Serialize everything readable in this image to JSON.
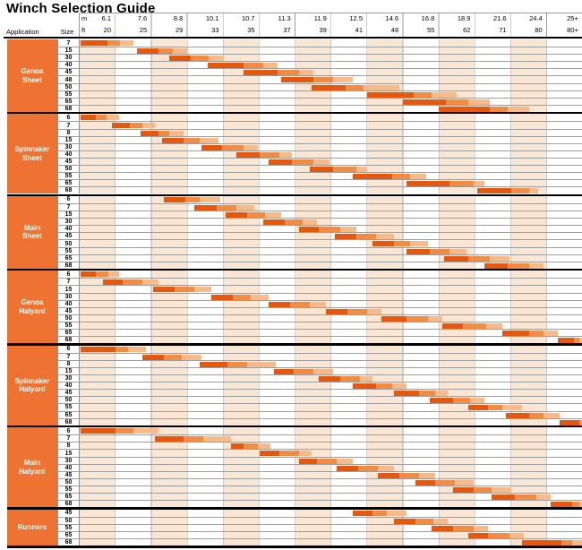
{
  "title": "Winch Selection Guide",
  "header": {
    "application_label": "Application",
    "size_label": "Size",
    "unit_top": "m",
    "unit_bottom": "ft"
  },
  "colors": {
    "bar_dark": "#e4590e",
    "bar_mid": "#f08c44",
    "bar_light": "#f6ba8b",
    "column_shade": "#fae6d4",
    "application_cell": "#ee7231",
    "gridline": "#9e9e9e",
    "section_divider": "#000000"
  },
  "chart_data": {
    "type": "bar",
    "subtype": "horizontal-range-guide",
    "title": "Winch Selection Guide",
    "legend_position": "none",
    "grid": true,
    "x_axis": {
      "unit_labels": [
        "m",
        "ft"
      ],
      "ticks": [
        {
          "m": "6.1",
          "ft": "20"
        },
        {
          "m": "7.6",
          "ft": "25"
        },
        {
          "m": "8.8",
          "ft": "29"
        },
        {
          "m": "10.1",
          "ft": "33"
        },
        {
          "m": "10.7",
          "ft": "35"
        },
        {
          "m": "11.3",
          "ft": "37"
        },
        {
          "m": "11.9",
          "ft": "39"
        },
        {
          "m": "12.5",
          "ft": "41"
        },
        {
          "m": "14.6",
          "ft": "48"
        },
        {
          "m": "16.8",
          "ft": "55"
        },
        {
          "m": "18.9",
          "ft": "62"
        },
        {
          "m": "21.6",
          "ft": "71"
        },
        {
          "m": "24.4",
          "ft": "80"
        },
        {
          "m": "25+",
          "ft": "80+"
        }
      ],
      "note": "bar values are in column units: 0 = left edge of the 6.1m/20ft column, each tick column = 1 unit; segments are dark/mid/light orange"
    },
    "sections": [
      {
        "application": "Genoa Sheet",
        "rows": [
          {
            "winch_size": "7",
            "start": 0.02,
            "dark_end": 0.78,
            "mid_end": 1.12,
            "end": 1.5
          },
          {
            "winch_size": "15",
            "start": 1.6,
            "dark_end": 2.2,
            "mid_end": 2.6,
            "end": 3.0
          },
          {
            "winch_size": "30",
            "start": 2.5,
            "dark_end": 3.1,
            "mid_end": 3.6,
            "end": 4.0
          },
          {
            "winch_size": "40",
            "start": 3.55,
            "dark_end": 4.55,
            "mid_end": 5.1,
            "end": 5.5
          },
          {
            "winch_size": "45",
            "start": 4.55,
            "dark_end": 5.5,
            "mid_end": 6.1,
            "end": 6.5
          },
          {
            "winch_size": "48",
            "start": 5.6,
            "dark_end": 6.5,
            "mid_end": 7.05,
            "end": 7.6
          },
          {
            "winch_size": "50",
            "start": 6.45,
            "dark_end": 7.4,
            "mid_end": 7.9,
            "end": 8.9
          },
          {
            "winch_size": "55",
            "start": 8.0,
            "dark_end": 9.3,
            "mid_end": 9.8,
            "end": 10.5
          },
          {
            "winch_size": "65",
            "start": 9.0,
            "dark_end": 10.2,
            "mid_end": 10.8,
            "end": 11.4
          },
          {
            "winch_size": "68",
            "start": 10.0,
            "dark_end": 11.4,
            "mid_end": 11.9,
            "end": 12.5
          }
        ]
      },
      {
        "application": "Spinnaker Sheet",
        "rows": [
          {
            "winch_size": "6",
            "start": 0.02,
            "dark_end": 0.45,
            "mid_end": 0.75,
            "end": 1.1
          },
          {
            "winch_size": "7",
            "start": 0.9,
            "dark_end": 1.4,
            "mid_end": 1.75,
            "end": 2.1
          },
          {
            "winch_size": "8",
            "start": 1.7,
            "dark_end": 2.2,
            "mid_end": 2.5,
            "end": 2.9
          },
          {
            "winch_size": "15",
            "start": 2.3,
            "dark_end": 2.9,
            "mid_end": 3.35,
            "end": 3.85
          },
          {
            "winch_size": "30",
            "start": 3.4,
            "dark_end": 3.95,
            "mid_end": 4.55,
            "end": 4.95
          },
          {
            "winch_size": "40",
            "start": 4.35,
            "dark_end": 5.0,
            "mid_end": 5.55,
            "end": 5.9
          },
          {
            "winch_size": "45",
            "start": 5.25,
            "dark_end": 5.9,
            "mid_end": 6.5,
            "end": 6.95
          },
          {
            "winch_size": "50",
            "start": 6.4,
            "dark_end": 7.05,
            "mid_end": 7.7,
            "end": 8.0
          },
          {
            "winch_size": "55",
            "start": 7.6,
            "dark_end": 8.7,
            "mid_end": 9.2,
            "end": 9.65
          },
          {
            "winch_size": "65",
            "start": 9.1,
            "dark_end": 10.3,
            "mid_end": 10.95,
            "end": 11.25
          },
          {
            "winch_size": "68",
            "start": 11.05,
            "dark_end": 12.0,
            "mid_end": 12.5,
            "end": 12.75
          }
        ]
      },
      {
        "application": "Main Sheet",
        "rows": [
          {
            "winch_size": "6",
            "start": 2.35,
            "dark_end": 2.95,
            "mid_end": 3.35,
            "end": 3.9
          },
          {
            "winch_size": "7",
            "start": 3.2,
            "dark_end": 3.8,
            "mid_end": 4.35,
            "end": 4.85
          },
          {
            "winch_size": "15",
            "start": 4.05,
            "dark_end": 4.65,
            "mid_end": 5.15,
            "end": 5.6
          },
          {
            "winch_size": "30",
            "start": 5.1,
            "dark_end": 5.7,
            "mid_end": 6.2,
            "end": 6.6
          },
          {
            "winch_size": "40",
            "start": 6.1,
            "dark_end": 6.65,
            "mid_end": 7.25,
            "end": 7.7
          },
          {
            "winch_size": "45",
            "start": 7.1,
            "dark_end": 7.7,
            "mid_end": 8.25,
            "end": 8.75
          },
          {
            "winch_size": "50",
            "start": 8.15,
            "dark_end": 8.75,
            "mid_end": 9.2,
            "end": 9.7
          },
          {
            "winch_size": "55",
            "start": 9.1,
            "dark_end": 9.75,
            "mid_end": 10.3,
            "end": 10.75
          },
          {
            "winch_size": "65",
            "start": 10.15,
            "dark_end": 10.8,
            "mid_end": 11.4,
            "end": 11.95
          },
          {
            "winch_size": "68",
            "start": 11.25,
            "dark_end": 11.9,
            "mid_end": 12.5,
            "end": 12.9
          }
        ]
      },
      {
        "application": "Genoa Halyard",
        "rows": [
          {
            "winch_size": "6",
            "start": 0.02,
            "dark_end": 0.45,
            "mid_end": 0.8,
            "end": 1.1
          },
          {
            "winch_size": "7",
            "start": 0.65,
            "dark_end": 1.2,
            "mid_end": 1.75,
            "end": 2.2
          },
          {
            "winch_size": "15",
            "start": 2.05,
            "dark_end": 2.65,
            "mid_end": 3.2,
            "end": 3.65
          },
          {
            "winch_size": "30",
            "start": 3.65,
            "dark_end": 4.25,
            "mid_end": 4.75,
            "end": 5.25
          },
          {
            "winch_size": "40",
            "start": 5.25,
            "dark_end": 5.85,
            "mid_end": 6.4,
            "end": 6.85
          },
          {
            "winch_size": "45",
            "start": 6.85,
            "dark_end": 7.45,
            "mid_end": 8.0,
            "end": 8.4
          },
          {
            "winch_size": "50",
            "start": 8.4,
            "dark_end": 9.1,
            "mid_end": 9.7,
            "end": 10.1
          },
          {
            "winch_size": "55",
            "start": 10.1,
            "dark_end": 10.65,
            "mid_end": 11.3,
            "end": 11.75
          },
          {
            "winch_size": "65",
            "start": 11.75,
            "dark_end": 12.5,
            "mid_end": 12.9,
            "end": 13.3
          },
          {
            "winch_size": "68",
            "start": 13.3,
            "dark_end": 13.75,
            "mid_end": 13.9,
            "end": 14.0
          }
        ]
      },
      {
        "application": "Spinnaker Halyard",
        "rows": [
          {
            "winch_size": "6",
            "start": 0.02,
            "dark_end": 1.0,
            "mid_end": 1.35,
            "end": 1.85
          },
          {
            "winch_size": "7",
            "start": 1.75,
            "dark_end": 2.35,
            "mid_end": 2.85,
            "end": 3.4
          },
          {
            "winch_size": "8",
            "start": 3.35,
            "dark_end": 4.1,
            "mid_end": 4.65,
            "end": 5.45
          },
          {
            "winch_size": "15",
            "start": 5.4,
            "dark_end": 5.95,
            "mid_end": 6.5,
            "end": 7.05
          },
          {
            "winch_size": "30",
            "start": 6.65,
            "dark_end": 7.25,
            "mid_end": 7.8,
            "end": 8.15
          },
          {
            "winch_size": "40",
            "start": 7.6,
            "dark_end": 8.25,
            "mid_end": 8.7,
            "end": 9.1
          },
          {
            "winch_size": "45",
            "start": 8.75,
            "dark_end": 9.45,
            "mid_end": 9.9,
            "end": 10.25
          },
          {
            "winch_size": "50",
            "start": 9.75,
            "dark_end": 10.4,
            "mid_end": 10.85,
            "end": 11.25
          },
          {
            "winch_size": "55",
            "start": 10.8,
            "dark_end": 11.35,
            "mid_end": 11.75,
            "end": 12.3
          },
          {
            "winch_size": "65",
            "start": 11.85,
            "dark_end": 12.5,
            "mid_end": 12.9,
            "end": 13.35
          },
          {
            "winch_size": "68",
            "start": 13.35,
            "dark_end": 13.9,
            "mid_end": 13.95,
            "end": 14.0
          }
        ]
      },
      {
        "application": "Main Halyard",
        "rows": [
          {
            "winch_size": "6",
            "start": 0.02,
            "dark_end": 1.0,
            "mid_end": 1.5,
            "end": 2.2
          },
          {
            "winch_size": "7",
            "start": 2.1,
            "dark_end": 2.9,
            "mid_end": 3.45,
            "end": 4.2
          },
          {
            "winch_size": "8",
            "start": 4.2,
            "dark_end": 4.55,
            "mid_end": 4.95,
            "end": 5.3
          },
          {
            "winch_size": "15",
            "start": 5.0,
            "dark_end": 5.55,
            "mid_end": 6.1,
            "end": 6.45
          },
          {
            "winch_size": "30",
            "start": 6.1,
            "dark_end": 6.6,
            "mid_end": 7.15,
            "end": 7.6
          },
          {
            "winch_size": "40",
            "start": 7.15,
            "dark_end": 7.75,
            "mid_end": 8.3,
            "end": 8.75
          },
          {
            "winch_size": "45",
            "start": 8.3,
            "dark_end": 8.9,
            "mid_end": 9.45,
            "end": 9.9
          },
          {
            "winch_size": "50",
            "start": 9.35,
            "dark_end": 9.9,
            "mid_end": 10.45,
            "end": 10.95
          },
          {
            "winch_size": "55",
            "start": 10.4,
            "dark_end": 10.95,
            "mid_end": 11.45,
            "end": 12.0
          },
          {
            "winch_size": "65",
            "start": 11.45,
            "dark_end": 12.1,
            "mid_end": 12.7,
            "end": 13.1
          },
          {
            "winch_size": "68",
            "start": 13.1,
            "dark_end": 13.7,
            "mid_end": 13.9,
            "end": 14.0
          }
        ]
      },
      {
        "application": "Runners",
        "rows": [
          {
            "winch_size": "45",
            "start": 7.6,
            "dark_end": 8.15,
            "mid_end": 8.55,
            "end": 9.1
          },
          {
            "winch_size": "50",
            "start": 8.75,
            "dark_end": 9.35,
            "mid_end": 9.85,
            "end": 10.25
          },
          {
            "winch_size": "55",
            "start": 9.8,
            "dark_end": 10.4,
            "mid_end": 10.95,
            "end": 11.35
          },
          {
            "winch_size": "65",
            "start": 10.8,
            "dark_end": 11.35,
            "mid_end": 11.95,
            "end": 12.35
          },
          {
            "winch_size": "68",
            "start": 12.3,
            "dark_end": 13.4,
            "mid_end": 13.7,
            "end": 14.0
          }
        ]
      }
    ]
  }
}
